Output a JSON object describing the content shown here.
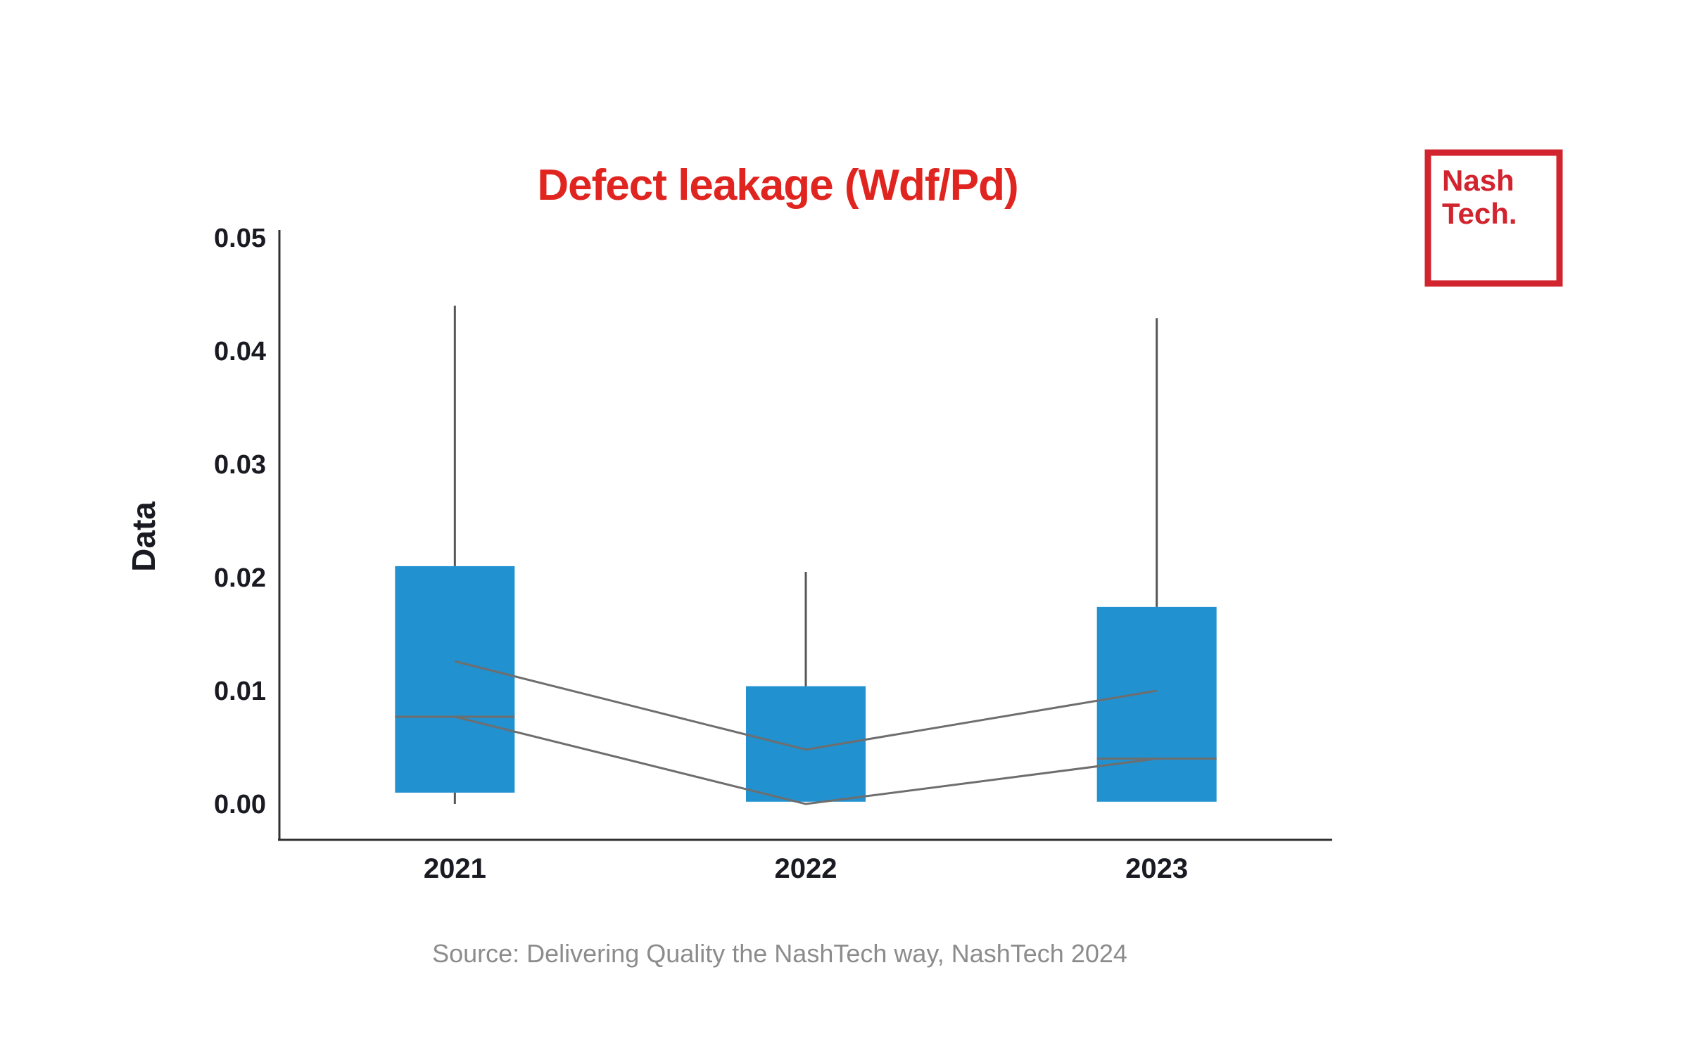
{
  "chart_data": {
    "type": "boxplot",
    "title": "Defect leakage (Wdf/Pd)",
    "ylabel": "Data",
    "xlabel": "",
    "categories": [
      "2021",
      "2022",
      "2023"
    ],
    "ylim": [
      0,
      0.05
    ],
    "grid": false,
    "legend": "none",
    "y_ticks": [
      {
        "value": 0.0,
        "label": "0.00"
      },
      {
        "value": 0.01,
        "label": "0.01"
      },
      {
        "value": 0.02,
        "label": "0.02"
      },
      {
        "value": 0.03,
        "label": "0.03"
      },
      {
        "value": 0.04,
        "label": "0.04"
      },
      {
        "value": 0.05,
        "label": "0.05"
      }
    ],
    "boxes": [
      {
        "category": "2021",
        "whisker_low": 0.0,
        "q1": 0.001,
        "median": 0.0077,
        "q3": 0.021,
        "whisker_high": 0.044,
        "show_median_line": true
      },
      {
        "category": "2022",
        "whisker_low": null,
        "q1": 0.0002,
        "median": 0.0,
        "q3": 0.0104,
        "whisker_high": 0.0205,
        "show_median_line": false
      },
      {
        "category": "2023",
        "whisker_low": null,
        "q1": 0.0002,
        "median": 0.004,
        "q3": 0.0174,
        "whisker_high": 0.0429,
        "show_median_line": true
      }
    ],
    "trend_lines": [
      {
        "name": "mean-trend",
        "values": [
          0.0126,
          0.0048,
          0.01
        ]
      },
      {
        "name": "median-trend",
        "values": [
          0.0077,
          0.0,
          0.004
        ]
      }
    ],
    "colors": {
      "box": "#2191D0",
      "whisker": "#565656",
      "trend": "#6E6E6E",
      "axis": "#303030",
      "tick_text": "#1A1B22",
      "title": "#E0241F"
    }
  },
  "logo": {
    "line1": "Nash",
    "line2": "Tech.",
    "color": "#D2242E"
  },
  "source": {
    "text": "Source: Delivering Quality the NashTech way, NashTech 2024",
    "color": "#8C8C8C"
  }
}
